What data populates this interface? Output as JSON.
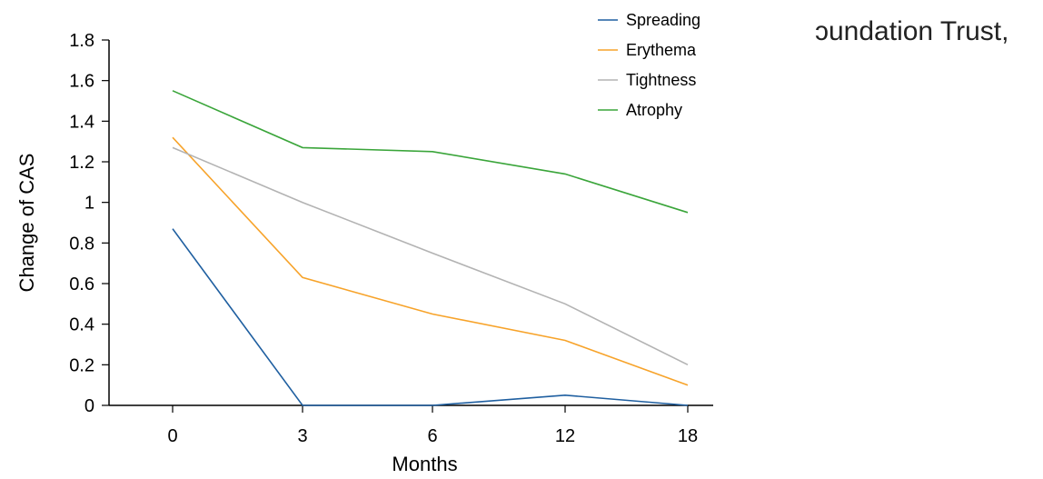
{
  "background_text": "ɔundation Trust,",
  "chart_data": {
    "type": "line",
    "xlabel": "Months",
    "ylabel": "Change of CAS",
    "categories": [
      "0",
      "3",
      "6",
      "12",
      "18"
    ],
    "ylim": [
      0,
      1.8
    ],
    "yticks": [
      "0",
      "0.2",
      "0.4",
      "0.6",
      "0.8",
      "1",
      "1.2",
      "1.4",
      "1.6",
      "1.8"
    ],
    "grid": false,
    "legend_position": "top-right",
    "series": [
      {
        "name": "Spreading",
        "color": "#1f5fa0",
        "values": [
          0.87,
          0.0,
          0.0,
          0.05,
          0.0
        ]
      },
      {
        "name": "Erythema",
        "color": "#f7a32a",
        "values": [
          1.32,
          0.63,
          0.45,
          0.32,
          0.1
        ]
      },
      {
        "name": "Tightness",
        "color": "#b3b3b3",
        "values": [
          1.27,
          1.0,
          0.75,
          0.5,
          0.2
        ]
      },
      {
        "name": "Atrophy",
        "color": "#3aa53a",
        "values": [
          1.55,
          1.27,
          1.25,
          1.14,
          0.95
        ]
      }
    ]
  }
}
